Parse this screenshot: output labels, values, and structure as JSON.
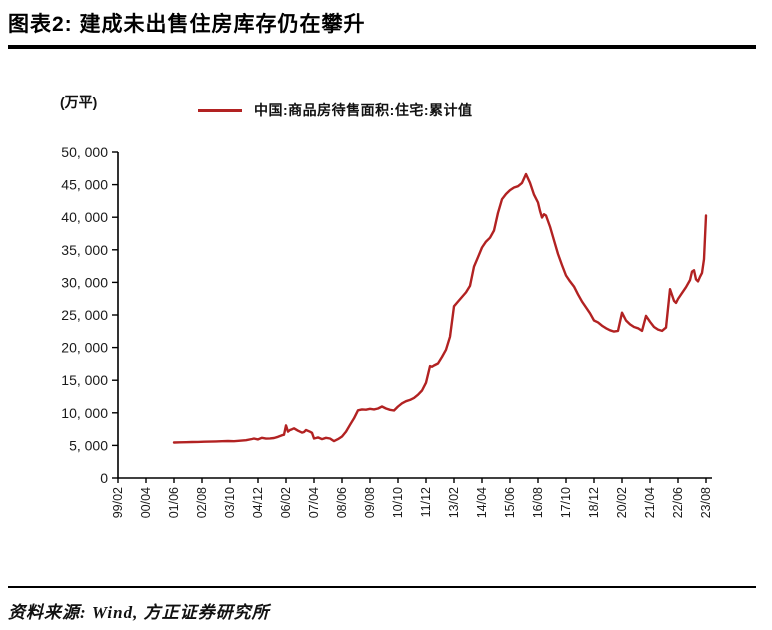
{
  "header": {
    "title": "图表2: 建成未出售住房库存仍在攀升"
  },
  "footer": {
    "source": "资料来源: Wind, 方正证券研究所"
  },
  "chart_data": {
    "type": "line",
    "title": "图表2: 建成未出售住房库存仍在攀升",
    "unit_label": "(万平)",
    "legend": [
      "中国:商品房待售面积:住宅:累计值"
    ],
    "line_color": "#b22222",
    "axis_color": "#000000",
    "ylim": [
      0,
      50000
    ],
    "y_tick_values": [
      0,
      5000,
      10000,
      15000,
      20000,
      25000,
      30000,
      35000,
      40000,
      45000,
      50000
    ],
    "y_tick_labels": [
      "0",
      "5, 000",
      "10, 000",
      "15, 000",
      "20, 000",
      "25, 000",
      "30, 000",
      "35, 000",
      "40, 000",
      "45, 000",
      "50, 000"
    ],
    "x_tick_labels": [
      "99/02",
      "00/04",
      "01/06",
      "02/08",
      "03/10",
      "04/12",
      "06/02",
      "07/04",
      "08/06",
      "09/08",
      "10/10",
      "11/12",
      "13/02",
      "14/04",
      "15/06",
      "16/08",
      "17/10",
      "18/12",
      "20/02",
      "21/04",
      "22/06",
      "23/08"
    ],
    "x_tick_interval_months": 14,
    "grid": false,
    "legend_position": "top",
    "series": [
      {
        "name": "中国:商品房待售面积:住宅:累计值",
        "points": [
          [
            "01/06",
            5450
          ],
          [
            "01/09",
            5470
          ],
          [
            "01/12",
            5490
          ],
          [
            "02/03",
            5520
          ],
          [
            "02/06",
            5540
          ],
          [
            "02/09",
            5560
          ],
          [
            "02/12",
            5580
          ],
          [
            "03/03",
            5610
          ],
          [
            "03/06",
            5640
          ],
          [
            "03/09",
            5670
          ],
          [
            "03/12",
            5650
          ],
          [
            "04/03",
            5720
          ],
          [
            "04/06",
            5800
          ],
          [
            "04/09",
            5980
          ],
          [
            "04/10",
            6060
          ],
          [
            "04/12",
            5920
          ],
          [
            "05/02",
            6160
          ],
          [
            "05/04",
            6040
          ],
          [
            "05/06",
            6080
          ],
          [
            "05/08",
            6140
          ],
          [
            "05/10",
            6320
          ],
          [
            "05/12",
            6560
          ],
          [
            "06/01",
            6640
          ],
          [
            "06/02",
            8060
          ],
          [
            "06/03",
            7120
          ],
          [
            "06/04",
            7360
          ],
          [
            "06/05",
            7480
          ],
          [
            "06/06",
            7620
          ],
          [
            "06/08",
            7260
          ],
          [
            "06/10",
            6960
          ],
          [
            "06/11",
            7060
          ],
          [
            "06/12",
            7360
          ],
          [
            "07/02",
            7100
          ],
          [
            "07/03",
            6940
          ],
          [
            "07/04",
            6060
          ],
          [
            "07/05",
            6130
          ],
          [
            "07/06",
            6220
          ],
          [
            "07/08",
            5960
          ],
          [
            "07/10",
            6160
          ],
          [
            "07/12",
            6060
          ],
          [
            "08/02",
            5660
          ],
          [
            "08/04",
            5960
          ],
          [
            "08/06",
            6360
          ],
          [
            "08/08",
            7120
          ],
          [
            "08/10",
            8160
          ],
          [
            "08/12",
            9160
          ],
          [
            "09/02",
            10380
          ],
          [
            "09/04",
            10520
          ],
          [
            "09/06",
            10470
          ],
          [
            "09/08",
            10620
          ],
          [
            "09/10",
            10520
          ],
          [
            "09/12",
            10660
          ],
          [
            "10/02",
            10960
          ],
          [
            "10/04",
            10660
          ],
          [
            "10/06",
            10460
          ],
          [
            "10/08",
            10360
          ],
          [
            "10/10",
            10960
          ],
          [
            "10/12",
            11460
          ],
          [
            "11/02",
            11780
          ],
          [
            "11/04",
            11980
          ],
          [
            "11/06",
            12280
          ],
          [
            "11/08",
            12780
          ],
          [
            "11/10",
            13420
          ],
          [
            "11/12",
            14620
          ],
          [
            "12/02",
            17160
          ],
          [
            "12/03",
            17060
          ],
          [
            "12/04",
            17260
          ],
          [
            "12/06",
            17560
          ],
          [
            "12/08",
            18560
          ],
          [
            "12/10",
            19660
          ],
          [
            "12/12",
            21660
          ],
          [
            "13/02",
            26340
          ],
          [
            "13/04",
            27060
          ],
          [
            "13/06",
            27760
          ],
          [
            "13/08",
            28460
          ],
          [
            "13/10",
            29460
          ],
          [
            "13/12",
            32420
          ],
          [
            "14/02",
            33860
          ],
          [
            "14/04",
            35360
          ],
          [
            "14/06",
            36260
          ],
          [
            "14/08",
            36860
          ],
          [
            "14/10",
            37960
          ],
          [
            "14/12",
            40680
          ],
          [
            "15/02",
            42760
          ],
          [
            "15/04",
            43560
          ],
          [
            "15/06",
            44160
          ],
          [
            "15/08",
            44560
          ],
          [
            "15/10",
            44760
          ],
          [
            "15/12",
            45260
          ],
          [
            "16/02",
            46620
          ],
          [
            "16/04",
            45280
          ],
          [
            "16/06",
            43460
          ],
          [
            "16/08",
            42260
          ],
          [
            "16/09",
            40960
          ],
          [
            "16/10",
            39960
          ],
          [
            "16/11",
            40460
          ],
          [
            "16/12",
            40260
          ],
          [
            "17/02",
            38560
          ],
          [
            "17/04",
            36460
          ],
          [
            "17/06",
            34360
          ],
          [
            "17/08",
            32660
          ],
          [
            "17/10",
            31060
          ],
          [
            "17/12",
            30160
          ],
          [
            "18/02",
            29360
          ],
          [
            "18/04",
            28160
          ],
          [
            "18/06",
            27060
          ],
          [
            "18/08",
            26160
          ],
          [
            "18/10",
            25260
          ],
          [
            "18/12",
            24160
          ],
          [
            "19/02",
            23860
          ],
          [
            "19/04",
            23360
          ],
          [
            "19/06",
            22960
          ],
          [
            "19/08",
            22660
          ],
          [
            "19/10",
            22460
          ],
          [
            "19/12",
            22560
          ],
          [
            "20/02",
            25360
          ],
          [
            "20/04",
            24160
          ],
          [
            "20/06",
            23560
          ],
          [
            "20/08",
            23160
          ],
          [
            "20/10",
            22960
          ],
          [
            "20/12",
            22560
          ],
          [
            "21/02",
            24860
          ],
          [
            "21/04",
            23960
          ],
          [
            "21/06",
            23160
          ],
          [
            "21/08",
            22760
          ],
          [
            "21/10",
            22560
          ],
          [
            "21/12",
            23060
          ],
          [
            "22/02",
            28960
          ],
          [
            "22/03",
            28060
          ],
          [
            "22/04",
            27160
          ],
          [
            "22/05",
            26860
          ],
          [
            "22/06",
            27460
          ],
          [
            "22/08",
            28360
          ],
          [
            "22/10",
            29260
          ],
          [
            "22/12",
            30360
          ],
          [
            "23/01",
            31660
          ],
          [
            "23/02",
            31860
          ],
          [
            "23/03",
            30460
          ],
          [
            "23/04",
            30160
          ],
          [
            "23/05",
            30860
          ],
          [
            "23/06",
            31460
          ],
          [
            "23/07",
            33560
          ],
          [
            "23/08",
            40260
          ]
        ]
      }
    ]
  }
}
